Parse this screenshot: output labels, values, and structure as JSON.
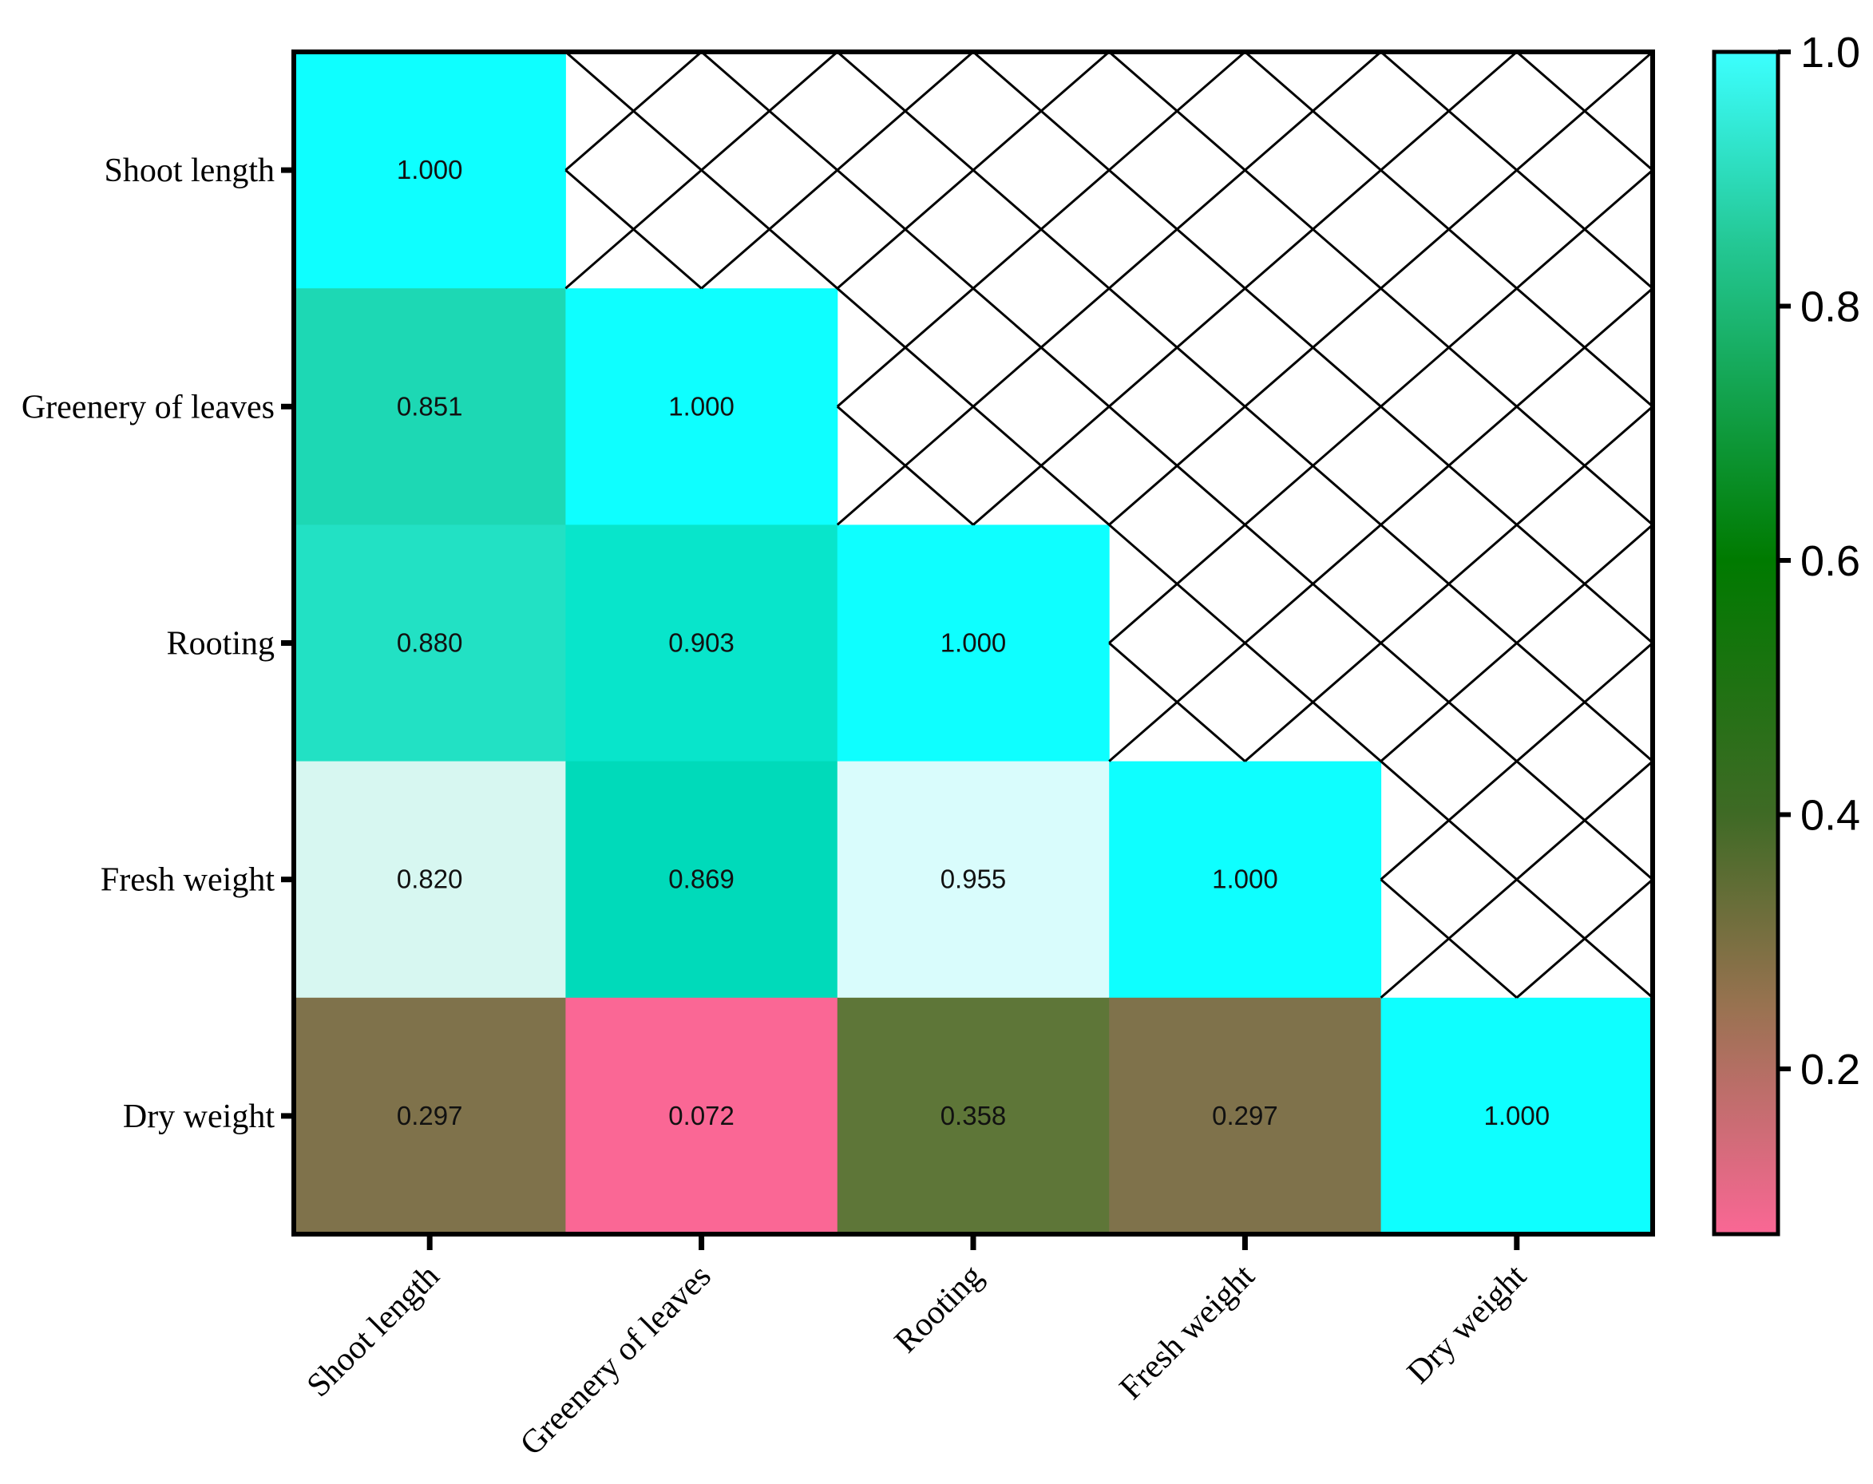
{
  "chart_data": {
    "type": "heatmap",
    "title": "",
    "xlabel": "",
    "ylabel": "",
    "rows": [
      "Shoot length",
      "Greenery of leaves",
      "Rooting",
      "Fresh weight",
      "Dry weight"
    ],
    "columns": [
      "Shoot length",
      "Greenery of leaves",
      "Rooting",
      "Fresh weight",
      "Dry weight"
    ],
    "values": [
      [
        1.0,
        null,
        null,
        null,
        null
      ],
      [
        0.851,
        1.0,
        null,
        null,
        null
      ],
      [
        0.88,
        0.903,
        1.0,
        null,
        null
      ],
      [
        0.82,
        0.869,
        0.955,
        1.0,
        null
      ],
      [
        0.297,
        0.072,
        0.358,
        0.297,
        1.0
      ]
    ],
    "cell_labels": [
      [
        "1.000",
        "",
        "",
        "",
        ""
      ],
      [
        "0.851",
        "1.000",
        "",
        "",
        ""
      ],
      [
        "0.880",
        "0.903",
        "1.000",
        "",
        ""
      ],
      [
        "0.820",
        "0.869",
        "0.955",
        "1.000",
        ""
      ],
      [
        "0.297",
        "0.072",
        "0.358",
        "0.297",
        "1.000"
      ]
    ],
    "cell_colors": [
      [
        "#0EFFFF",
        null,
        null,
        null,
        null
      ],
      [
        "#1DD8B4",
        "#0EFFFF",
        null,
        null,
        null
      ],
      [
        "#22E1C4",
        "#08E5CB",
        "#0EFFFF",
        null,
        null
      ],
      [
        "#D7F7F1",
        "#00DABA",
        "#D9FCFC",
        "#0EFFFF",
        null
      ],
      [
        "#7F724B",
        "#FA6795",
        "#5E7638",
        "#7F724B",
        "#0EFFFF"
      ]
    ],
    "empty_cells": "crosshatch",
    "colorbar": {
      "range": [
        0.07,
        1.0
      ],
      "ticks": [
        1.0,
        0.8,
        0.6,
        0.4,
        0.2
      ],
      "tick_labels": [
        "1.0",
        "0.8",
        "0.6",
        "0.4",
        "0.2"
      ],
      "gradient_stops": [
        {
          "value": 1.0,
          "color": "#3CFFFF"
        },
        {
          "value": 0.85,
          "color": "#24C895"
        },
        {
          "value": 0.6,
          "color": "#007A00"
        },
        {
          "value": 0.4,
          "color": "#3F6A25"
        },
        {
          "value": 0.25,
          "color": "#987250"
        },
        {
          "value": 0.07,
          "color": "#FA6795"
        }
      ],
      "placement": "right"
    },
    "grid": false
  }
}
